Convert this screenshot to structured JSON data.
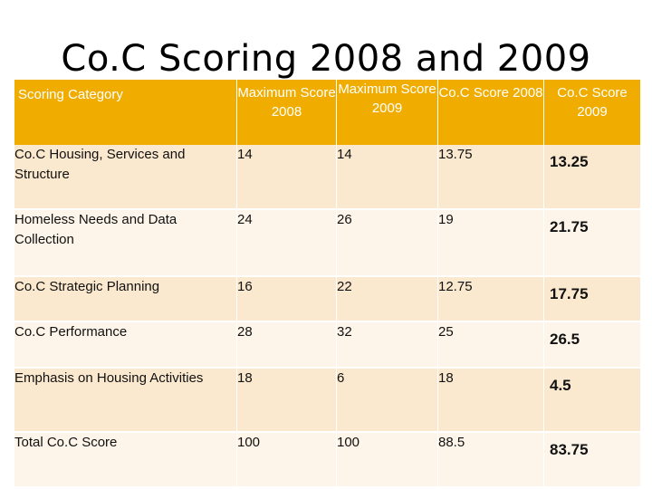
{
  "title": "Co.C Scoring 2008 and 2009",
  "table": {
    "headers": [
      "Scoring Category",
      "Maximum Score 2008",
      "Maximum Score 2009",
      "Co.C Score 2008",
      "Co.C Score 2009"
    ],
    "rows": [
      [
        "Co.C Housing, Services and Structure",
        "14",
        "14",
        "13.75",
        "13.25"
      ],
      [
        "Homeless Needs and Data Collection",
        "24",
        "26",
        "19",
        "21.75"
      ],
      [
        "Co.C Strategic Planning",
        "16",
        "22",
        "12.75",
        "17.75"
      ],
      [
        "Co.C Performance",
        "28",
        "32",
        "25",
        "26.5"
      ],
      [
        "Emphasis on Housing Activities",
        "18",
        "6",
        "18",
        "4.5"
      ],
      [
        "Total Co.C Score",
        "100",
        "100",
        "88.5",
        "83.75"
      ]
    ]
  },
  "colors": {
    "header_bg": "#f0ad00",
    "row_odd_bg": "#fbe9cf",
    "row_even_bg": "#fdf5e9"
  }
}
